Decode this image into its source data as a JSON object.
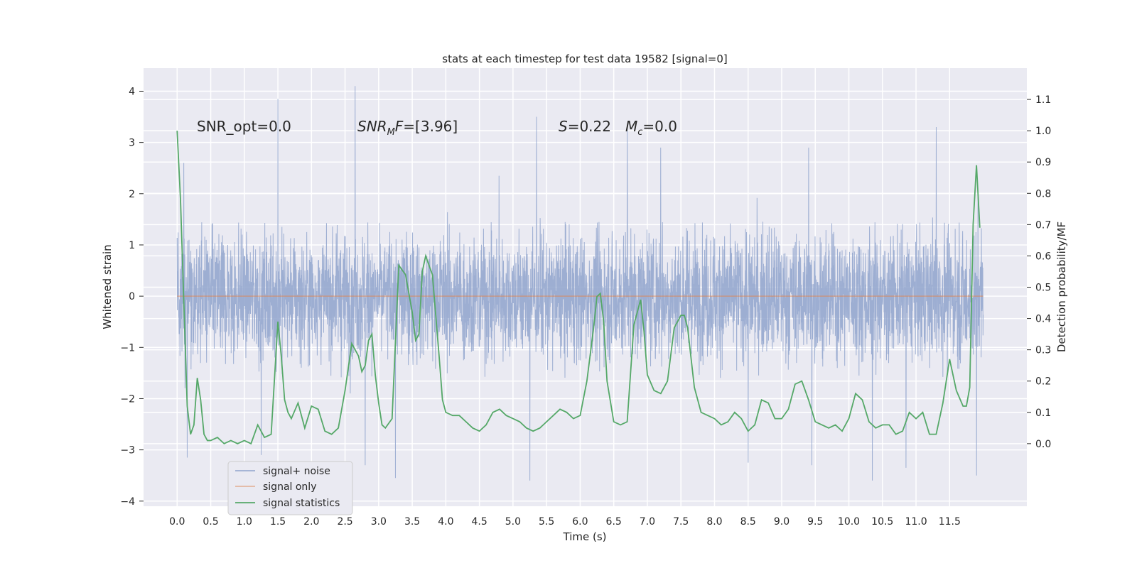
{
  "chart_data": {
    "type": "line",
    "title": "stats at each timestep for test data 19582 [signal=0]",
    "xlabel": "Time (s)",
    "ylabel": "Whitened strain",
    "y2label": "Detection probability/MF",
    "xlim": [
      -0.5,
      12.65
    ],
    "ylim": [
      -4.1,
      4.45
    ],
    "y2lim": [
      -0.2,
      1.2
    ],
    "x_ticks": [
      0.0,
      0.5,
      1.0,
      1.5,
      2.0,
      2.5,
      3.0,
      3.5,
      4.0,
      4.5,
      5.0,
      5.5,
      6.0,
      6.5,
      7.0,
      7.5,
      8.0,
      8.5,
      9.0,
      9.5,
      10.0,
      10.5,
      11.0,
      11.5
    ],
    "x_tick_labels": [
      "0.0",
      "0.5",
      "1.0",
      "1.5",
      "2.0",
      "2.5",
      "3.0",
      "3.5",
      "4.0",
      "4.5",
      "5.0",
      "5.5",
      "6.0",
      "6.5",
      "7.0",
      "7.5",
      "8.0",
      "8.5",
      "9.0",
      "9.5",
      "10.0",
      "10.5",
      "11.0",
      "11.5"
    ],
    "y_ticks": [
      -4,
      -3,
      -2,
      -1,
      0,
      1,
      2,
      3,
      4
    ],
    "y_tick_labels": [
      "−4",
      "−3",
      "−2",
      "−1",
      "0",
      "1",
      "2",
      "3",
      "4"
    ],
    "y2_ticks": [
      0.0,
      0.1,
      0.2,
      0.3,
      0.4,
      0.5,
      0.6,
      0.7,
      0.8,
      0.9,
      1.0,
      1.1
    ],
    "y2_tick_labels": [
      "0.0",
      "0.1",
      "0.2",
      "0.3",
      "0.4",
      "0.5",
      "0.6",
      "0.7",
      "0.8",
      "0.9",
      "1.0",
      "1.1"
    ],
    "grid": true,
    "legend_position": "lower-left",
    "annotations": {
      "snr_opt": "SNR_opt=0.0",
      "snr_mf": "=[3.96]",
      "s_stat": "=0.22",
      "mc": "=0.0"
    },
    "series": [
      {
        "name": "signal+ noise",
        "axis": "left",
        "color": "#8fa3cc",
        "description_span": [
          0.0,
          12.0
        ],
        "envelope": {
          "typical_min": -1.6,
          "typical_max": 1.45,
          "extreme_min": -3.6,
          "extreme_max": 4.1
        },
        "peaks": [
          [
            1.5,
            3.85
          ],
          [
            2.65,
            4.1
          ],
          [
            5.35,
            3.5
          ],
          [
            6.7,
            3.25
          ],
          [
            8.5,
            3.55
          ],
          [
            10.85,
            3.8
          ],
          [
            11.3,
            3.3
          ],
          [
            9.4,
            2.9
          ],
          [
            0.1,
            2.6
          ],
          [
            7.2,
            2.9
          ]
        ],
        "troughs": [
          [
            0.15,
            -3.15
          ],
          [
            2.8,
            -3.3
          ],
          [
            3.25,
            -3.55
          ],
          [
            5.25,
            -3.6
          ],
          [
            8.5,
            -3.25
          ],
          [
            10.35,
            -3.6
          ],
          [
            10.85,
            -3.35
          ],
          [
            11.9,
            -3.5
          ],
          [
            1.25,
            -3.1
          ],
          [
            9.45,
            -3.3
          ]
        ]
      },
      {
        "name": "signal only",
        "axis": "left",
        "color": "#dd8452",
        "x": [
          0.0,
          12.0
        ],
        "y": [
          0.0,
          0.0
        ]
      },
      {
        "name": "signal statistics",
        "axis": "right",
        "color": "#55a868",
        "x": [
          0.0,
          0.05,
          0.1,
          0.15,
          0.2,
          0.25,
          0.3,
          0.35,
          0.4,
          0.45,
          0.5,
          0.6,
          0.7,
          0.8,
          0.9,
          1.0,
          1.1,
          1.2,
          1.3,
          1.4,
          1.5,
          1.55,
          1.6,
          1.65,
          1.7,
          1.8,
          1.9,
          2.0,
          2.1,
          2.2,
          2.3,
          2.4,
          2.5,
          2.6,
          2.7,
          2.75,
          2.8,
          2.85,
          2.9,
          2.95,
          3.0,
          3.05,
          3.1,
          3.2,
          3.3,
          3.4,
          3.5,
          3.55,
          3.6,
          3.65,
          3.7,
          3.8,
          3.9,
          3.95,
          4.0,
          4.1,
          4.2,
          4.3,
          4.4,
          4.5,
          4.6,
          4.7,
          4.8,
          4.9,
          5.0,
          5.1,
          5.2,
          5.3,
          5.4,
          5.5,
          5.6,
          5.7,
          5.8,
          5.9,
          6.0,
          6.1,
          6.2,
          6.25,
          6.3,
          6.35,
          6.4,
          6.5,
          6.6,
          6.7,
          6.8,
          6.9,
          6.95,
          7.0,
          7.1,
          7.2,
          7.3,
          7.4,
          7.5,
          7.55,
          7.6,
          7.7,
          7.8,
          7.9,
          8.0,
          8.1,
          8.2,
          8.3,
          8.4,
          8.5,
          8.6,
          8.7,
          8.8,
          8.9,
          9.0,
          9.1,
          9.2,
          9.3,
          9.4,
          9.5,
          9.6,
          9.7,
          9.8,
          9.9,
          10.0,
          10.1,
          10.2,
          10.3,
          10.4,
          10.5,
          10.6,
          10.7,
          10.8,
          10.9,
          11.0,
          11.1,
          11.2,
          11.3,
          11.4,
          11.5,
          11.6,
          11.7,
          11.75,
          11.8,
          11.85,
          11.9,
          11.95
        ],
        "y": [
          1.0,
          0.78,
          0.45,
          0.12,
          0.03,
          0.06,
          0.21,
          0.14,
          0.03,
          0.01,
          0.01,
          0.02,
          0.0,
          0.01,
          0.0,
          0.01,
          0.0,
          0.06,
          0.02,
          0.03,
          0.39,
          0.28,
          0.14,
          0.1,
          0.08,
          0.13,
          0.05,
          0.12,
          0.11,
          0.04,
          0.03,
          0.05,
          0.17,
          0.32,
          0.28,
          0.23,
          0.25,
          0.33,
          0.35,
          0.22,
          0.13,
          0.06,
          0.05,
          0.08,
          0.57,
          0.54,
          0.42,
          0.33,
          0.35,
          0.55,
          0.6,
          0.54,
          0.28,
          0.14,
          0.1,
          0.09,
          0.09,
          0.07,
          0.05,
          0.04,
          0.06,
          0.1,
          0.11,
          0.09,
          0.08,
          0.07,
          0.05,
          0.04,
          0.05,
          0.07,
          0.09,
          0.11,
          0.1,
          0.08,
          0.09,
          0.2,
          0.37,
          0.47,
          0.48,
          0.39,
          0.2,
          0.07,
          0.06,
          0.07,
          0.38,
          0.46,
          0.36,
          0.22,
          0.17,
          0.16,
          0.2,
          0.37,
          0.41,
          0.41,
          0.37,
          0.18,
          0.1,
          0.09,
          0.08,
          0.06,
          0.07,
          0.1,
          0.08,
          0.04,
          0.06,
          0.14,
          0.13,
          0.08,
          0.08,
          0.11,
          0.19,
          0.2,
          0.14,
          0.07,
          0.06,
          0.05,
          0.06,
          0.04,
          0.08,
          0.16,
          0.14,
          0.07,
          0.05,
          0.06,
          0.06,
          0.03,
          0.04,
          0.1,
          0.08,
          0.1,
          0.03,
          0.03,
          0.13,
          0.27,
          0.17,
          0.12,
          0.12,
          0.18,
          0.7,
          0.89,
          0.69
        ],
        "note_y_range": "detection probability on right axis"
      }
    ]
  }
}
